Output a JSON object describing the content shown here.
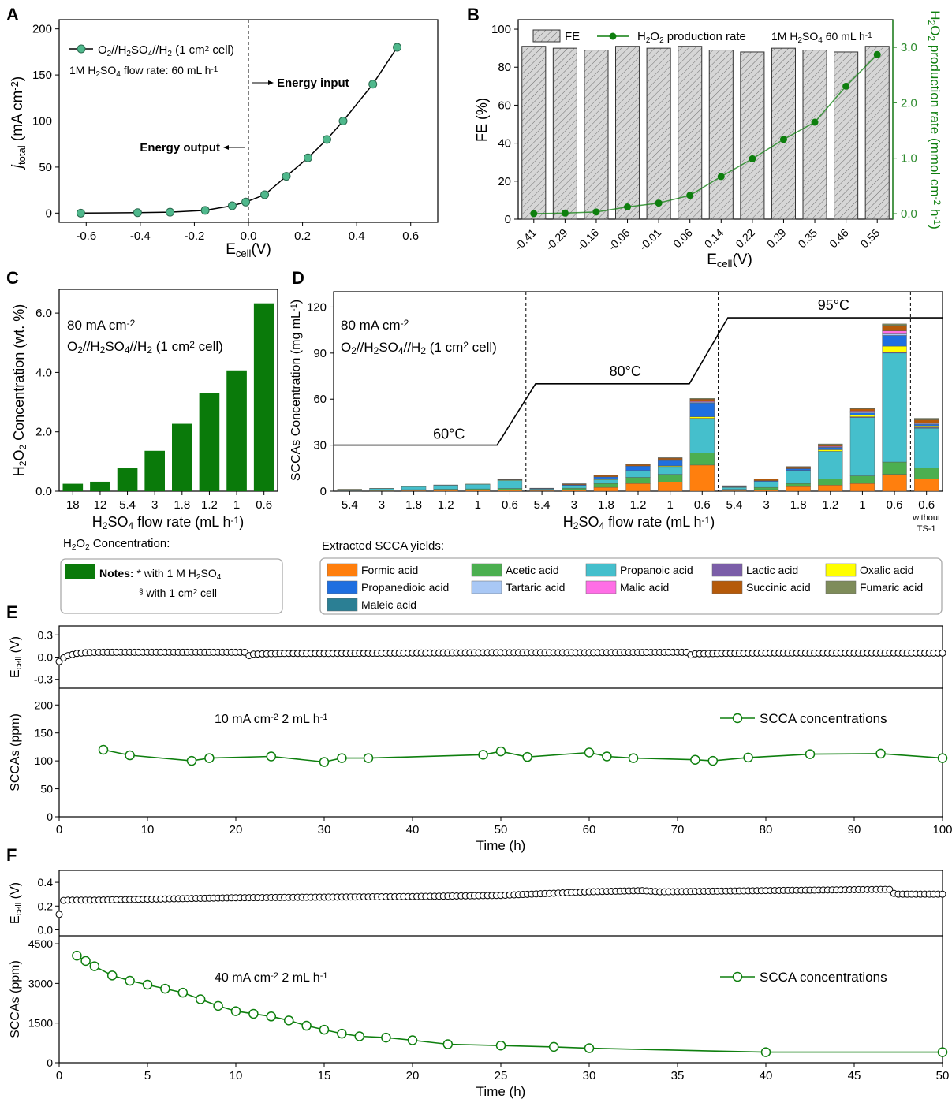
{
  "panels": {
    "A": "A",
    "B": "B",
    "C": "C",
    "D": "D",
    "E": "E",
    "F": "F"
  },
  "colors": {
    "green_dark": "#0e7f0e",
    "green_marker": "#4fb88c",
    "green_bar": "#0a7a0a",
    "axis_green": "#2e8b2e",
    "fe_bar": "#cfcfcf"
  },
  "chart_data": [
    {
      "panel": "A",
      "type": "line",
      "xlabel": "E",
      "xlabel_sub": "cell",
      "xlabel_tail": "(V)",
      "ylabel": "j",
      "ylabel_sub": "total",
      "ylabel_tail": " (mA cm",
      "ylabel_sup": "-2",
      "ylabel_close": ")",
      "xlim": [
        -0.7,
        0.7
      ],
      "ylim": [
        -10,
        210
      ],
      "xticks": [
        "-0.6",
        "-0.4",
        "-0.2",
        "0.0",
        "0.2",
        "0.4",
        "0.6"
      ],
      "xtick_values": [
        -0.6,
        -0.4,
        -0.2,
        0.0,
        0.2,
        0.4,
        0.6
      ],
      "yticks": [
        "0",
        "50",
        "100",
        "150",
        "200"
      ],
      "ytick_values": [
        0,
        50,
        100,
        150,
        200
      ],
      "series": [
        {
          "name": "O2//H2SO4//H2 (1 cm2 cell)",
          "x": [
            -0.62,
            -0.41,
            -0.29,
            -0.16,
            -0.06,
            -0.01,
            0.06,
            0.14,
            0.22,
            0.29,
            0.35,
            0.46,
            0.55
          ],
          "y": [
            0,
            0.5,
            1,
            3,
            8,
            12,
            20,
            40,
            60,
            80,
            100,
            140,
            180
          ]
        }
      ],
      "legend_parts": [
        "O",
        "2",
        "//H",
        "2",
        "SO",
        "4",
        "//H",
        "2",
        " (1 cm",
        "2",
        " cell)"
      ],
      "note_parts": [
        "1M H",
        "2",
        "SO",
        "4",
        " flow rate: 60 mL h",
        "-1"
      ],
      "annotations": {
        "energy_input": "Energy input",
        "energy_output": "Energy output"
      },
      "vline_x": 0.0
    },
    {
      "panel": "B",
      "type": "bar",
      "categories": [
        "-0.41",
        "-0.29",
        "-0.16",
        "-0.06",
        "-0.01",
        "0.06",
        "0.14",
        "0.22",
        "0.29",
        "0.35",
        "0.46",
        "0.55"
      ],
      "xlabel": "E",
      "xlabel_sub": "cell",
      "xlabel_tail": "(V)",
      "ylabel_left": "FE (%)",
      "ylim_left": [
        0,
        105
      ],
      "yticks_left": [
        "0",
        "20",
        "40",
        "60",
        "80",
        "100"
      ],
      "ytick_values_left": [
        0,
        20,
        40,
        60,
        80,
        100
      ],
      "ylim_right": [
        -0.1,
        3.5
      ],
      "yticks_right": [
        "0.0",
        "1.0",
        "2.0",
        "3.0"
      ],
      "ytick_values_right": [
        0,
        1,
        2,
        3
      ],
      "ylabel_right_parts": [
        "H",
        "2",
        "O",
        "2",
        " production rate (mmol cm",
        "-2",
        " h",
        "-1",
        ")"
      ],
      "series": [
        {
          "name": "FE",
          "values": [
            91,
            90,
            89,
            91,
            90,
            91,
            89,
            88,
            90,
            89,
            88,
            91
          ]
        },
        {
          "name": "H2O2 production rate",
          "values": [
            0.0,
            0.01,
            0.03,
            0.12,
            0.19,
            0.33,
            0.67,
            0.99,
            1.34,
            1.65,
            2.3,
            2.87
          ]
        }
      ],
      "legend_fe": "FE",
      "legend_rate_parts": [
        "H",
        "2",
        "O",
        "2",
        " production rate"
      ],
      "note_parts": [
        "1M H",
        "2",
        "SO",
        "4",
        " 60 mL h",
        "-1"
      ]
    },
    {
      "panel": "C",
      "type": "bar",
      "categories": [
        "18",
        "12",
        "5.4",
        "3",
        "1.8",
        "1.2",
        "1",
        "0.6"
      ],
      "values": [
        0.25,
        0.32,
        0.77,
        1.36,
        2.27,
        3.32,
        4.07,
        6.33
      ],
      "ylim": [
        0,
        6.8
      ],
      "yticks": [
        "0.0",
        "2.0",
        "4.0",
        "6.0"
      ],
      "ytick_values": [
        0,
        2,
        4,
        6
      ],
      "ylabel_parts": [
        "H",
        "2",
        "O",
        "2",
        " Concentration (wt. %)"
      ],
      "xlabel_parts": [
        "H",
        "2",
        "SO",
        "4",
        " flow rate (mL h",
        "-1",
        ")"
      ],
      "note1_parts": [
        "80 mA cm",
        "-2"
      ],
      "note2_parts": [
        "O",
        "2",
        "//H",
        "2",
        "SO",
        "4",
        "//H",
        "2",
        " (1 cm",
        "2",
        " cell)"
      ]
    },
    {
      "panel": "D",
      "type": "bar",
      "stacked": true,
      "categories": [
        "5.4",
        "3",
        "1.8",
        "1.2",
        "1",
        "0.6",
        "5.4",
        "3",
        "1.8",
        "1.2",
        "1",
        "0.6",
        "5.4",
        "3",
        "1.8",
        "1.2",
        "1",
        "0.6",
        "0.6"
      ],
      "extra_label": [
        "without",
        "TS-1"
      ],
      "ylim": [
        0,
        130
      ],
      "yticks": [
        "0",
        "30",
        "60",
        "90",
        "120"
      ],
      "ytick_values": [
        0,
        30,
        60,
        90,
        120
      ],
      "ylabel_parts": [
        "SCCAs Concentration (mg mL",
        "-1",
        ")"
      ],
      "xlabel_parts": [
        "H",
        "2",
        "SO",
        "4",
        " flow rate (mL h",
        "-1",
        ")"
      ],
      "note1_parts": [
        "80 mA cm",
        "-2"
      ],
      "note2_parts": [
        "O",
        "2",
        "//H",
        "2",
        "SO",
        "4",
        "//H",
        "2",
        " (1 cm",
        "2",
        " cell)"
      ],
      "temperatures": [
        "60°C",
        "80°C",
        "95°C"
      ],
      "temperature_values": [
        30,
        70,
        113
      ],
      "series": [
        {
          "name": "Formic acid",
          "color": "#ff7f0e",
          "values": [
            0.2,
            0.3,
            0.5,
            0.6,
            0.7,
            0.8,
            0.5,
            1,
            2.5,
            5,
            6,
            17,
            0.5,
            1,
            3,
            4,
            5,
            11,
            8
          ]
        },
        {
          "name": "Acetic acid",
          "color": "#4caf50",
          "values": [
            0.2,
            0.3,
            0.5,
            0.7,
            0.8,
            1,
            0.5,
            1,
            2.5,
            4,
            5,
            8,
            0.7,
            1.5,
            2,
            4,
            5,
            8,
            7
          ]
        },
        {
          "name": "Propanoic acid",
          "color": "#45bfcc",
          "values": [
            0.8,
            1.2,
            2,
            2.6,
            3,
            5.2,
            0.5,
            1.5,
            2.5,
            4,
            5,
            22,
            1.3,
            3.5,
            8,
            18,
            38,
            71,
            26
          ]
        },
        {
          "name": "Lactic acid",
          "color": "#7b5ea8",
          "values": [
            0,
            0,
            0,
            0,
            0,
            0,
            0,
            0,
            0,
            0,
            0,
            0.5,
            0,
            0,
            0,
            0,
            0.5,
            0.5,
            0.5
          ]
        },
        {
          "name": "Oxalic acid",
          "color": "#ffff00",
          "values": [
            0.1,
            0.1,
            0.1,
            0.2,
            0.2,
            0.3,
            0,
            0.2,
            0.3,
            0.4,
            0.5,
            1,
            0.1,
            0.3,
            0.5,
            1,
            1,
            4,
            1
          ]
        },
        {
          "name": "Propanedioic acid",
          "color": "#1f6fe0",
          "values": [
            0,
            0,
            0,
            0,
            0,
            0,
            0.3,
            0.5,
            1.5,
            3,
            3.5,
            9,
            0.3,
            0.5,
            1,
            1.5,
            1.5,
            7,
            1
          ]
        },
        {
          "name": "Tartaric acid",
          "color": "#a9c8f5",
          "values": [
            0,
            0,
            0,
            0,
            0,
            0,
            0,
            0,
            0,
            0,
            0.3,
            0.5,
            0,
            0,
            0,
            0.3,
            0.5,
            1,
            0.5
          ]
        },
        {
          "name": "Malic acid",
          "color": "#ff6ee6",
          "values": [
            0,
            0,
            0,
            0,
            0,
            0,
            0,
            0,
            0,
            0,
            0.3,
            0.5,
            0,
            0,
            0.3,
            0.5,
            0.7,
            2,
            0.5
          ]
        },
        {
          "name": "Succinic acid",
          "color": "#b55a0a",
          "values": [
            0,
            0,
            0,
            0,
            0,
            0.2,
            0.2,
            0.5,
            1,
            1,
            1,
            1.5,
            0.5,
            1,
            1,
            1,
            1.5,
            3.5,
            2
          ]
        },
        {
          "name": "Fumaric acid",
          "color": "#7e8c5a",
          "values": [
            0,
            0,
            0,
            0,
            0,
            0.2,
            0,
            0.2,
            0.3,
            0.3,
            0.3,
            0.5,
            0.2,
            0.2,
            0.3,
            0.5,
            0.5,
            1,
            1
          ]
        },
        {
          "name": "Maleic acid",
          "color": "#2b7f94",
          "values": [
            0,
            0,
            0,
            0,
            0,
            0,
            0,
            0,
            0,
            0,
            0,
            0,
            0,
            0,
            0,
            0,
            0,
            0,
            0
          ]
        }
      ]
    },
    {
      "panel": "E",
      "type": "line",
      "xlabel": "Time (h)",
      "xlim": [
        0,
        100
      ],
      "xticks": [
        "0",
        "10",
        "20",
        "30",
        "40",
        "50",
        "60",
        "70",
        "80",
        "90",
        "100"
      ],
      "xtick_values": [
        0,
        10,
        20,
        30,
        40,
        50,
        60,
        70,
        80,
        90,
        100
      ],
      "top": {
        "ylabel": "E",
        "ylabel_sub": "cell",
        "ylabel_tail": " (V)",
        "ylim": [
          -0.42,
          0.42
        ],
        "yticks": [
          "-0.3",
          "0.0",
          "0.3"
        ],
        "ytick_values": [
          -0.3,
          0.0,
          0.3
        ],
        "x": [
          0,
          0.5,
          1,
          1.5,
          2,
          3,
          5,
          10,
          21,
          21.5,
          22,
          25,
          30,
          40,
          50,
          60,
          70,
          71,
          71.5,
          72,
          75,
          80,
          90,
          100
        ],
        "y": [
          -0.06,
          -0.01,
          0.02,
          0.035,
          0.05,
          0.06,
          0.065,
          0.065,
          0.065,
          0.02,
          0.04,
          0.05,
          0.05,
          0.055,
          0.06,
          0.06,
          0.065,
          0.065,
          0.03,
          0.045,
          0.05,
          0.055,
          0.055,
          0.055
        ],
        "step": 0.5
      },
      "bottom": {
        "ylabel": "SCCAs (ppm)",
        "ylim": [
          0,
          230
        ],
        "yticks": [
          "0",
          "50",
          "100",
          "150",
          "200"
        ],
        "ytick_values": [
          0,
          50,
          100,
          150,
          200
        ],
        "series": [
          {
            "name": "SCCA concentrations",
            "x": [
              5,
              8,
              15,
              17,
              24,
              30,
              32,
              35,
              48,
              50,
              53,
              60,
              62,
              65,
              72,
              74,
              78,
              85,
              93,
              100
            ],
            "y": [
              120,
              110,
              100,
              105,
              108,
              98,
              105,
              105,
              111,
              117,
              107,
              115,
              108,
              105,
              102,
              100,
              106,
              112,
              113,
              105
            ]
          }
        ],
        "note_parts": [
          "10 mA cm",
          "-2",
          " 2 mL h",
          "-1"
        ]
      }
    },
    {
      "panel": "F",
      "type": "line",
      "xlabel": "Time (h)",
      "xlim": [
        0,
        50
      ],
      "xticks": [
        "0",
        "5",
        "10",
        "15",
        "20",
        "25",
        "30",
        "35",
        "40",
        "45",
        "50"
      ],
      "xtick_values": [
        0,
        5,
        10,
        15,
        20,
        25,
        30,
        35,
        40,
        45,
        50
      ],
      "top": {
        "ylabel": "E",
        "ylabel_sub": "cell",
        "ylabel_tail": " (V)",
        "ylim": [
          -0.05,
          0.5
        ],
        "yticks": [
          "0.0",
          "0.2",
          "0.4"
        ],
        "ytick_values": [
          0.0,
          0.2,
          0.4
        ],
        "x": [
          0,
          0.1,
          0.3,
          2,
          10,
          20,
          25,
          30,
          33,
          34,
          40,
          46.5,
          47,
          47.3,
          48,
          50
        ],
        "y": [
          0.13,
          0.24,
          0.25,
          0.25,
          0.27,
          0.28,
          0.29,
          0.32,
          0.33,
          0.32,
          0.33,
          0.34,
          0.34,
          0.3,
          0.3,
          0.3
        ],
        "step": 0.25
      },
      "bottom": {
        "ylabel": "SCCAs (ppm)",
        "ylim": [
          0,
          4800
        ],
        "yticks": [
          "0",
          "1500",
          "3000",
          "4500"
        ],
        "ytick_values": [
          0,
          1500,
          3000,
          4500
        ],
        "series": [
          {
            "name": "SCCA concentrations",
            "x": [
              1,
              1.5,
              2,
              3,
              4,
              5,
              6,
              7,
              8,
              9,
              10,
              11,
              12,
              13,
              14,
              15,
              16,
              17,
              18.5,
              20,
              22,
              25,
              28,
              30,
              40,
              50
            ],
            "y": [
              4050,
              3850,
              3650,
              3300,
              3100,
              2950,
              2800,
              2650,
              2400,
              2150,
              1950,
              1850,
              1750,
              1600,
              1400,
              1250,
              1100,
              1000,
              950,
              850,
              700,
              650,
              600,
              550,
              400,
              400
            ]
          }
        ],
        "note_parts": [
          "40 mA cm",
          "-2",
          " 2 mL h",
          "-1"
        ]
      }
    }
  ],
  "notes_box": {
    "title_parts": [
      "H",
      "2",
      "O",
      "2",
      " Concentration:"
    ],
    "line1_bold": "Notes:",
    "line1_parts": [
      " * with 1 M H",
      "2",
      "SO",
      "4"
    ],
    "line2_sup": "§",
    "line2_parts": [
      " with 1 cm",
      "2",
      " cell"
    ]
  },
  "legend_box": {
    "title": "Extracted SCCA yields:"
  }
}
